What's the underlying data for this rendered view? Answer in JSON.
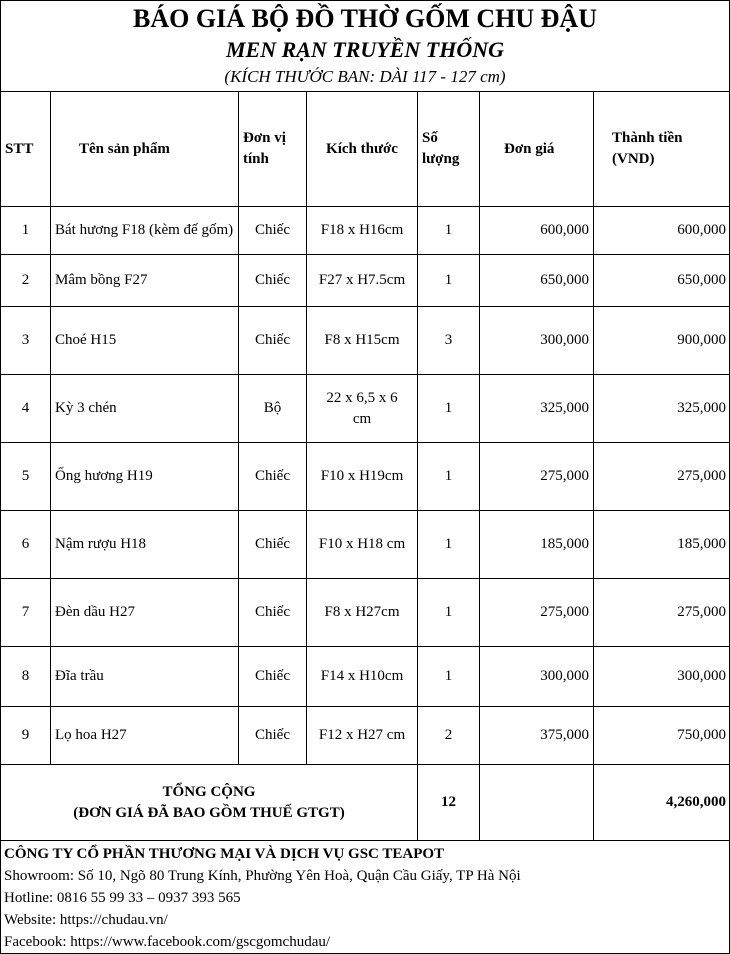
{
  "title": "BÁO GIÁ BỘ ĐỒ THỜ GỐM CHU ĐẬU",
  "subtitle": "MEN RẠN TRUYỀN THỐNG",
  "note": "(KÍCH THƯỚC BAN: DÀI 117 - 127 cm)",
  "headers": {
    "stt": "STT",
    "name": "Tên sản phẩm",
    "unit": "Đơn vị tính",
    "size": "Kích thước",
    "qty": "Số lượng",
    "price": "Đơn giá",
    "total": "Thành tiền (VND)"
  },
  "rows": [
    {
      "stt": "1",
      "name": "Bát hương F18 (kèm đế gốm)",
      "unit": "Chiếc",
      "size": "F18 x H16cm",
      "qty": "1",
      "price": "600,000",
      "total": "600,000"
    },
    {
      "stt": "2",
      "name": "Mâm bồng F27",
      "unit": "Chiếc",
      "size": "F27 x H7.5cm",
      "qty": "1",
      "price": "650,000",
      "total": "650,000"
    },
    {
      "stt": "3",
      "name": "Choé H15",
      "unit": "Chiếc",
      "size": "F8 x H15cm",
      "qty": "3",
      "price": "300,000",
      "total": "900,000"
    },
    {
      "stt": "4",
      "name": "Kỳ 3 chén",
      "unit": "Bộ",
      "size": "22 x 6,5 x 6 cm",
      "qty": "1",
      "price": "325,000",
      "total": "325,000"
    },
    {
      "stt": "5",
      "name": "Ống hương H19",
      "unit": "Chiếc",
      "size": "F10 x H19cm",
      "qty": "1",
      "price": "275,000",
      "total": "275,000"
    },
    {
      "stt": "6",
      "name": "Nậm rượu H18",
      "unit": "Chiếc",
      "size": "F10 x H18 cm",
      "qty": "1",
      "price": "185,000",
      "total": "185,000"
    },
    {
      "stt": "7",
      "name": "Đèn dầu H27",
      "unit": "Chiếc",
      "size": "F8 x H27cm",
      "qty": "1",
      "price": "275,000",
      "total": "275,000"
    },
    {
      "stt": "8",
      "name": "Đĩa trầu",
      "unit": "Chiếc",
      "size": "F14 x H10cm",
      "qty": "1",
      "price": "300,000",
      "total": "300,000"
    },
    {
      "stt": "9",
      "name": "Lọ hoa H27",
      "unit": "Chiếc",
      "size": "F12 x H27 cm",
      "qty": "2",
      "price": "375,000",
      "total": "750,000"
    }
  ],
  "summary": {
    "label1": "TỔNG CỘNG",
    "label2": "(ĐƠN GIÁ ĐÃ BAO GỒM THUẾ GTGT)",
    "qty": "12",
    "total": "4,260,000"
  },
  "footer": {
    "company": "CÔNG TY CỔ PHẦN THƯƠNG MẠI VÀ DỊCH VỤ GSC TEAPOT",
    "showroom": "Showroom: Số 10, Ngõ 80 Trung Kính, Phường Yên Hoà, Quận Cầu Giấy, TP Hà Nội",
    "hotline": "Hotline: 0816 55 99 33 – 0937 393 565",
    "website": "Website: https://chudau.vn/",
    "facebook": "Facebook: https://www.facebook.com/gscgomchudau/"
  }
}
